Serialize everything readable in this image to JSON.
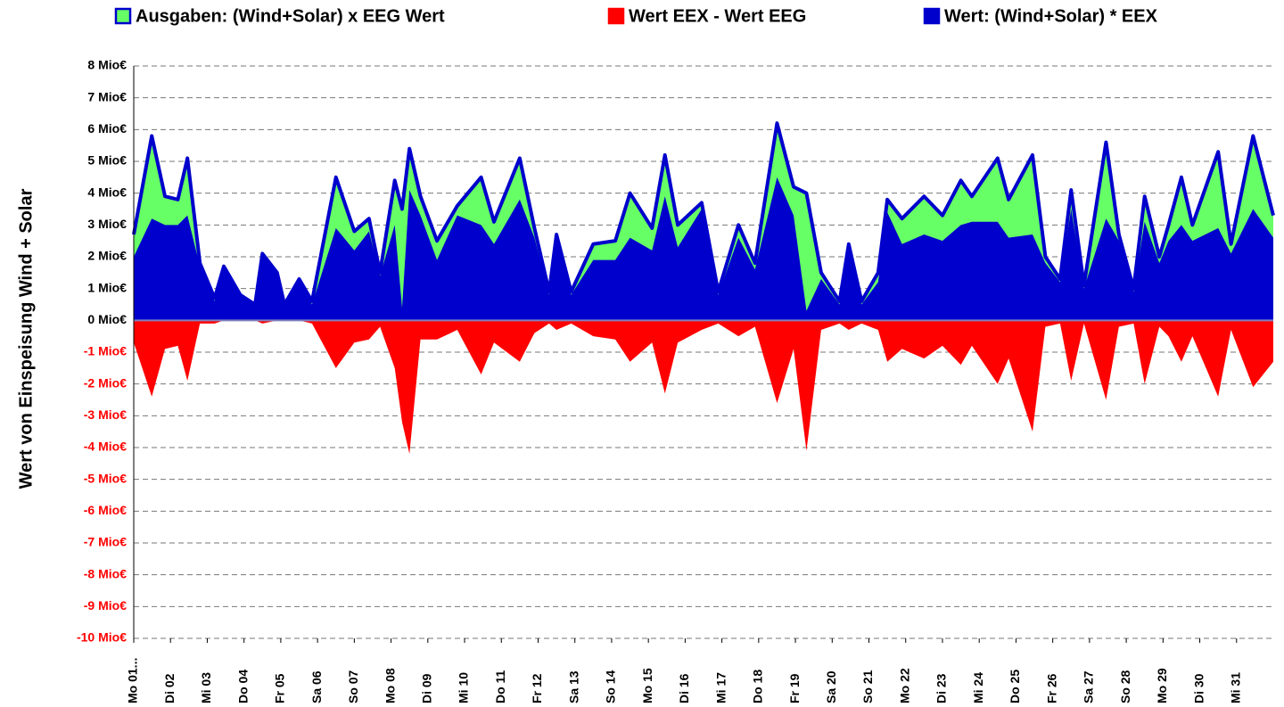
{
  "chart_data": {
    "type": "area",
    "y_axis_label": "Wert von Einspeisung Wind + Solar",
    "xlim": [
      0,
      31
    ],
    "ylim": [
      -10,
      8
    ],
    "yticks": [
      {
        "value": 8,
        "label": "8 Mio€"
      },
      {
        "value": 7,
        "label": "7 Mio€"
      },
      {
        "value": 6,
        "label": "6 Mio€"
      },
      {
        "value": 5,
        "label": "5 Mio€"
      },
      {
        "value": 4,
        "label": "4 Mio€"
      },
      {
        "value": 3,
        "label": "3 Mio€"
      },
      {
        "value": 2,
        "label": "2 Mio€"
      },
      {
        "value": 1,
        "label": "1 Mio€"
      },
      {
        "value": 0,
        "label": "0 Mio€"
      },
      {
        "value": -1,
        "label": "-1 Mio€"
      },
      {
        "value": -2,
        "label": "-2 Mio€"
      },
      {
        "value": -3,
        "label": "-3 Mio€"
      },
      {
        "value": -4,
        "label": "-4 Mio€"
      },
      {
        "value": -5,
        "label": "-5 Mio€"
      },
      {
        "value": -6,
        "label": "-6 Mio€"
      },
      {
        "value": -7,
        "label": "-7 Mio€"
      },
      {
        "value": -8,
        "label": "-8 Mio€"
      },
      {
        "value": -9,
        "label": "-9 Mio€"
      },
      {
        "value": -10,
        "label": "-10 Mio€"
      }
    ],
    "negative_tick_color": "#ff0000",
    "xticks": [
      {
        "value": 0,
        "label": "Mo 01..."
      },
      {
        "value": 1,
        "label": "Di 02"
      },
      {
        "value": 2,
        "label": "Mi 03"
      },
      {
        "value": 3,
        "label": "Do 04"
      },
      {
        "value": 4,
        "label": "Fr 05"
      },
      {
        "value": 5,
        "label": "Sa 06"
      },
      {
        "value": 6,
        "label": "So 07"
      },
      {
        "value": 7,
        "label": "Mo 08"
      },
      {
        "value": 8,
        "label": "Di 09"
      },
      {
        "value": 9,
        "label": "Mi 10"
      },
      {
        "value": 10,
        "label": "Do 11"
      },
      {
        "value": 11,
        "label": "Fr 12"
      },
      {
        "value": 12,
        "label": "Sa 13"
      },
      {
        "value": 13,
        "label": "So 14"
      },
      {
        "value": 14,
        "label": "Mo 15"
      },
      {
        "value": 15,
        "label": "Di 16"
      },
      {
        "value": 16,
        "label": "Mi 17"
      },
      {
        "value": 17,
        "label": "Do 18"
      },
      {
        "value": 18,
        "label": "Fr 19"
      },
      {
        "value": 19,
        "label": "Sa 20"
      },
      {
        "value": 20,
        "label": "So 21"
      },
      {
        "value": 21,
        "label": "Mo 22"
      },
      {
        "value": 22,
        "label": "Di 23"
      },
      {
        "value": 23,
        "label": "Mi 24"
      },
      {
        "value": 24,
        "label": "Do 25"
      },
      {
        "value": 25,
        "label": "Fr 26"
      },
      {
        "value": 26,
        "label": "Sa 27"
      },
      {
        "value": 27,
        "label": "So 28"
      },
      {
        "value": 28,
        "label": "Mo 29"
      },
      {
        "value": 29,
        "label": "Di 30"
      },
      {
        "value": 30,
        "label": "Mi 31"
      }
    ],
    "grid": true,
    "x": [
      0,
      0.49,
      0.85,
      1.2,
      1.46,
      1.8,
      2.2,
      2.45,
      2.9,
      3.3,
      3.5,
      3.9,
      4.1,
      4.5,
      4.85,
      5.5,
      6.0,
      6.4,
      6.7,
      7.1,
      7.3,
      7.5,
      7.8,
      8.25,
      8.8,
      9.45,
      9.8,
      10.5,
      10.9,
      11.3,
      11.5,
      11.9,
      12.5,
      13.1,
      13.5,
      14.1,
      14.45,
      14.8,
      15.45,
      15.9,
      16.45,
      16.9,
      17.5,
      17.95,
      18.3,
      18.7,
      19.2,
      19.45,
      19.8,
      20.25,
      20.5,
      20.9,
      21.5,
      22.0,
      22.5,
      22.8,
      23.5,
      23.8,
      24.45,
      24.8,
      25.2,
      25.5,
      25.85,
      26.45,
      26.8,
      27.2,
      27.5,
      27.9,
      28.15,
      28.5,
      28.8,
      29.5,
      29.85,
      30.45,
      31.0
    ],
    "series": [
      {
        "name": "Ausgaben: (Wind+Solar) x EEG Wert",
        "color": "#66ff66",
        "edge_color": "#0000cc",
        "values": [
          2.7,
          5.8,
          3.9,
          3.8,
          5.1,
          1.8,
          0.7,
          1.7,
          0.8,
          0.5,
          2.1,
          1.5,
          0.5,
          1.3,
          0.6,
          4.5,
          2.8,
          3.2,
          1.5,
          4.4,
          3.5,
          5.4,
          3.9,
          2.5,
          3.6,
          4.5,
          3.1,
          5.1,
          2.9,
          0.9,
          2.7,
          0.9,
          2.4,
          2.5,
          4.0,
          2.9,
          5.2,
          3.0,
          3.7,
          0.9,
          3.0,
          1.8,
          6.2,
          4.2,
          4.0,
          1.5,
          0.6,
          2.4,
          0.6,
          1.5,
          3.8,
          3.2,
          3.9,
          3.3,
          4.4,
          3.9,
          5.1,
          3.8,
          5.2,
          2.0,
          1.3,
          4.1,
          1.1,
          5.6,
          2.7,
          1.0,
          3.9,
          2.0,
          3.0,
          4.5,
          3.0,
          5.3,
          2.4,
          5.8,
          3.3
        ]
      },
      {
        "name": "Wert EEX - Wert EEG",
        "color": "#ff0000",
        "values": [
          -0.7,
          -2.4,
          -0.9,
          -0.8,
          -1.9,
          -0.1,
          -0.1,
          0,
          0,
          0,
          -0.1,
          0,
          0,
          0,
          -0.1,
          -1.5,
          -0.7,
          -0.6,
          -0.2,
          -1.5,
          -3.2,
          -4.2,
          -0.6,
          -0.6,
          -0.3,
          -1.7,
          -0.7,
          -1.3,
          -0.4,
          -0.1,
          -0.3,
          -0.1,
          -0.5,
          -0.6,
          -1.3,
          -0.7,
          -2.3,
          -0.7,
          -0.3,
          -0.1,
          -0.5,
          -0.2,
          -2.6,
          -0.9,
          -4.1,
          -0.3,
          -0.1,
          -0.3,
          -0.1,
          -0.3,
          -1.3,
          -0.9,
          -1.2,
          -0.8,
          -1.4,
          -0.8,
          -2.0,
          -1.2,
          -3.5,
          -0.2,
          -0.1,
          -1.9,
          -0.1,
          -2.5,
          -0.2,
          -0.1,
          -2.0,
          -0.2,
          -0.5,
          -1.3,
          -0.5,
          -2.4,
          -0.3,
          -2.1,
          -1.3
        ]
      },
      {
        "name": "Wert: (Wind+Solar) * EEX",
        "color": "#0000cc",
        "values": [
          2.0,
          3.2,
          3.0,
          3.0,
          3.3,
          1.7,
          0.6,
          1.7,
          0.8,
          0.5,
          2.1,
          1.5,
          0.5,
          1.3,
          0.5,
          2.9,
          2.2,
          2.8,
          1.4,
          3.0,
          0.4,
          4.1,
          3.3,
          1.9,
          3.3,
          3.0,
          2.4,
          3.8,
          2.6,
          0.8,
          2.5,
          0.8,
          1.9,
          1.9,
          2.6,
          2.2,
          3.9,
          2.3,
          3.5,
          0.8,
          2.6,
          1.6,
          4.5,
          3.3,
          0.3,
          1.3,
          0.5,
          2.2,
          0.5,
          1.2,
          3.4,
          2.4,
          2.7,
          2.5,
          3.0,
          3.1,
          3.1,
          2.6,
          2.7,
          1.8,
          1.2,
          3.5,
          1.0,
          3.2,
          2.5,
          0.9,
          3.1,
          1.8,
          2.5,
          3.0,
          2.5,
          2.9,
          2.1,
          3.5,
          2.6
        ]
      }
    ]
  }
}
